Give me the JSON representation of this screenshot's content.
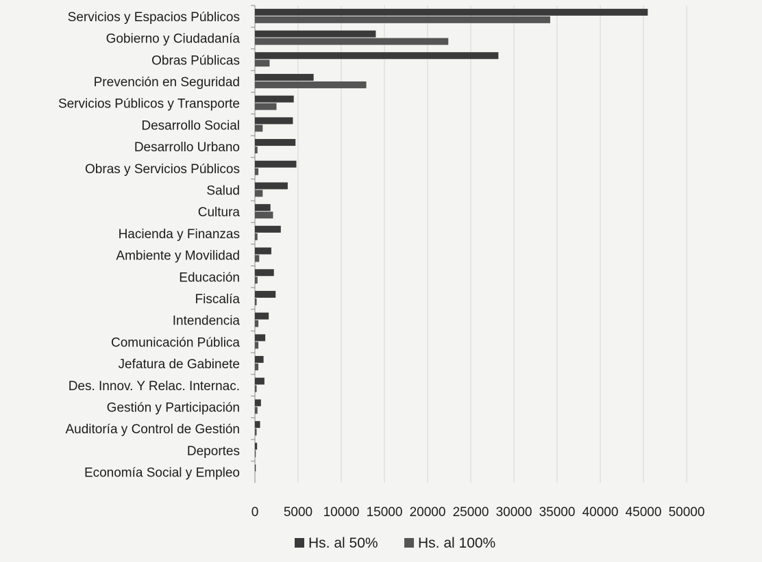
{
  "chart_data": {
    "type": "bar",
    "orientation": "horizontal",
    "categories": [
      "Servicios y Espacios Públicos",
      "Gobierno y Ciudadanía",
      "Obras Públicas",
      "Prevención en Seguridad",
      "Servicios Públicos y Transporte",
      "Desarrollo Social",
      "Desarrollo Urbano",
      "Obras y Servicios Públicos",
      "Salud",
      "Cultura",
      "Hacienda y Finanzas",
      "Ambiente y Movilidad",
      "Educación",
      "Fiscalía",
      "Intendencia",
      "Comunicación Pública",
      "Jefatura de Gabinete",
      "Des. Innov. Y Relac. Internac.",
      "Gestión y Participación",
      "Auditoría y Control de Gestión",
      "Deportes",
      "Economía Social y Empleo"
    ],
    "series": [
      {
        "name": "Hs. al 50%",
        "color": "#3a3a3a",
        "values": [
          45500,
          14000,
          28200,
          6800,
          4500,
          4400,
          4700,
          4800,
          3800,
          1800,
          3000,
          1900,
          2200,
          2400,
          1600,
          1200,
          1000,
          1100,
          700,
          600,
          250,
          100
        ]
      },
      {
        "name": "Hs. al 100%",
        "color": "#555555",
        "values": [
          34200,
          22400,
          1700,
          12900,
          2500,
          900,
          300,
          400,
          900,
          2100,
          300,
          500,
          300,
          200,
          400,
          400,
          400,
          200,
          300,
          200,
          100,
          0
        ]
      }
    ],
    "x_ticks": [
      0,
      5000,
      10000,
      15000,
      20000,
      25000,
      30000,
      35000,
      40000,
      45000,
      50000
    ],
    "xlim": [
      0,
      50000
    ],
    "grid": true,
    "legend_position": "bottom"
  }
}
